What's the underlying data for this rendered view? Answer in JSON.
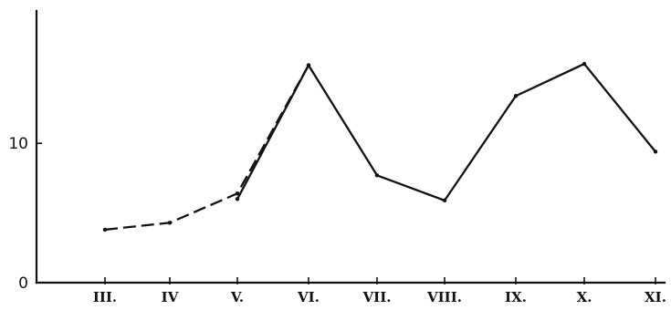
{
  "chart_data": {
    "type": "line",
    "title": "",
    "xlabel": "",
    "ylabel": "",
    "ylim": [
      0,
      19.5
    ],
    "yticks": [
      0,
      10
    ],
    "categories": [
      "III.",
      "IV",
      "V.",
      "VI.",
      "VII.",
      "VIII.",
      "IX.",
      "X.",
      "XI."
    ],
    "grid": false,
    "legend": "none",
    "series": [
      {
        "style": "dashed",
        "points": [
          {
            "x": "III.",
            "y": 3.8
          },
          {
            "x": "IV",
            "y": 4.3
          },
          {
            "x": "V.",
            "y": 6.4
          },
          {
            "x": "VI.",
            "y": 15.6
          }
        ]
      },
      {
        "style": "solid",
        "points": [
          {
            "x": "V.",
            "y": 6.0
          },
          {
            "x": "VI.",
            "y": 15.6
          },
          {
            "x": "VII.",
            "y": 7.7
          },
          {
            "x": "VIII.",
            "y": 5.9
          },
          {
            "x": "IX.",
            "y": 13.4
          },
          {
            "x": "X.",
            "y": 15.7
          },
          {
            "x": "XI.",
            "y": 9.4
          }
        ]
      }
    ]
  }
}
